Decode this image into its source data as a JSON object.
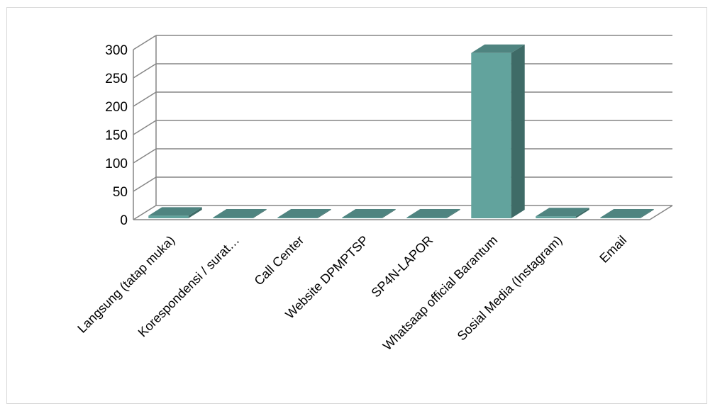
{
  "chart_data": {
    "type": "bar",
    "style": "3d-column",
    "categories": [
      "Langsung (tatap muka)",
      "Korespondensi / surat…",
      "Call Center",
      "Website DPMPTSP",
      "SP4N-LAPOR",
      "Whatsaap official Barantum",
      "Sosial Media (Instagram)",
      "Email"
    ],
    "values": [
      7,
      2,
      0,
      0,
      0,
      294,
      6,
      0
    ],
    "ylim": [
      0,
      300
    ],
    "yticks": [
      0,
      50,
      100,
      150,
      200,
      250,
      300
    ],
    "title": "",
    "xlabel": "",
    "ylabel": "",
    "grid": true,
    "legend": "none",
    "colors": {
      "front": "#62a39d",
      "side": "#3f6b67",
      "top": "#4f8480",
      "grid": "#868686"
    }
  }
}
